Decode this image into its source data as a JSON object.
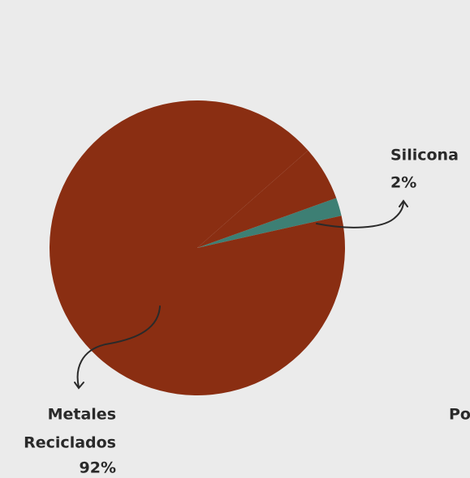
{
  "chart_data": {
    "type": "pie",
    "categories": [
      "Silicona",
      "Metales Reciclados",
      "Po"
    ],
    "values": [
      2,
      92,
      6
    ],
    "value_labels": [
      "2%",
      "92%",
      null
    ],
    "colors": [
      "#3d7f74",
      "#8a2e12",
      "#8a2e12"
    ]
  }
}
